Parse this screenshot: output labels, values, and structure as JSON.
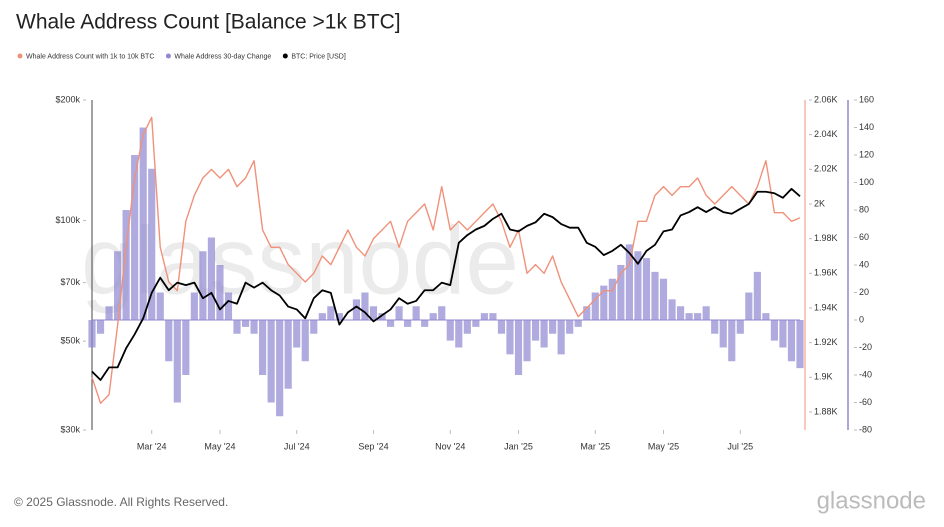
{
  "chart_data": {
    "type": "line",
    "title": "Whale Address Count [Balance >1k BTC]",
    "watermark": "glassnode",
    "footer": "© 2025 Glassnode. All Rights Reserved.",
    "logo": "glassnode",
    "categories": [
      null,
      null,
      null,
      null,
      null,
      null,
      null,
      "Mar '24",
      null,
      null,
      null,
      null,
      null,
      null,
      null,
      "May '24",
      null,
      null,
      null,
      null,
      null,
      null,
      null,
      null,
      "Jul '24",
      null,
      null,
      null,
      null,
      null,
      null,
      null,
      null,
      "Sep '24",
      null,
      null,
      null,
      null,
      null,
      null,
      null,
      null,
      "Nov '24",
      null,
      null,
      null,
      null,
      null,
      null,
      null,
      "Jan '25",
      null,
      null,
      null,
      null,
      null,
      null,
      null,
      null,
      "Mar '25",
      null,
      null,
      null,
      null,
      null,
      null,
      null,
      "May '25",
      null,
      null,
      null,
      null,
      null,
      null,
      null,
      null,
      "Jul '25",
      null,
      null,
      null,
      null,
      null,
      null,
      null
    ],
    "ylim": [
      30000,
      200000
    ],
    "log_scale": true,
    "yticks": [
      {
        "value": 30000,
        "label": "$30k"
      },
      {
        "value": 50000,
        "label": "$50k"
      },
      {
        "value": 70000,
        "label": "$70k"
      },
      {
        "value": 100000,
        "label": "$100k"
      },
      {
        "value": 200000,
        "label": "$200k"
      }
    ],
    "y2lim": [
      1869.6,
      2060
    ],
    "y2ticks": [
      {
        "value": 1880,
        "label": "1.88K"
      },
      {
        "value": 1900,
        "label": "1.9K"
      },
      {
        "value": 1920,
        "label": "1.92K"
      },
      {
        "value": 1940,
        "label": "1.94K"
      },
      {
        "value": 1960,
        "label": "1.96K"
      },
      {
        "value": 1980,
        "label": "1.98K"
      },
      {
        "value": 2000,
        "label": "2K"
      },
      {
        "value": 2020,
        "label": "2.02K"
      },
      {
        "value": 2040,
        "label": "2.04K"
      },
      {
        "value": 2060,
        "label": "2.06K"
      }
    ],
    "y3lim": [
      -80,
      160
    ],
    "y3ticks": [
      -80,
      -60,
      -40,
      -20,
      0,
      20,
      40,
      60,
      80,
      100,
      120,
      140,
      160
    ],
    "series": [
      {
        "name": "Whale Address Count with 1k to 10k BTC",
        "type": "line",
        "axis": "y2",
        "color": "#f0917a",
        "values": [
          1900,
          1885,
          1890,
          1930,
          1975,
          2015,
          2040,
          2050,
          1975,
          1955,
          1950,
          1990,
          2005,
          2015,
          2020,
          2015,
          2020,
          2010,
          2015,
          2025,
          1985,
          1975,
          1975,
          1965,
          1960,
          1955,
          1960,
          1970,
          1965,
          1975,
          1985,
          1975,
          1970,
          1980,
          1985,
          1990,
          1975,
          1990,
          1995,
          2000,
          1985,
          2010,
          1985,
          1990,
          1985,
          1990,
          1995,
          2000,
          1990,
          1975,
          1985,
          1960,
          1965,
          1960,
          1970,
          1955,
          1945,
          1935,
          1940,
          1945,
          1950,
          1950,
          1960,
          1965,
          1990,
          1990,
          2005,
          2010,
          2005,
          2010,
          2010,
          2015,
          2005,
          2000,
          2005,
          2010,
          2005,
          2000,
          2010,
          2025,
          1995,
          1995,
          1990,
          1992
        ]
      },
      {
        "name": "Whale Address 30-day Change",
        "type": "bar",
        "axis": "y3",
        "color": "#8f87d0",
        "values": [
          -20,
          -10,
          10,
          50,
          80,
          120,
          140,
          110,
          20,
          -30,
          -60,
          -40,
          20,
          50,
          60,
          40,
          20,
          -10,
          -5,
          -10,
          -40,
          -60,
          -70,
          -50,
          -20,
          -30,
          -10,
          5,
          10,
          5,
          0,
          15,
          20,
          10,
          5,
          -5,
          10,
          -5,
          10,
          -5,
          5,
          10,
          -15,
          -20,
          -10,
          -5,
          5,
          5,
          -10,
          -25,
          -40,
          -30,
          -15,
          -20,
          -10,
          -25,
          -10,
          -5,
          10,
          20,
          25,
          30,
          40,
          55,
          50,
          45,
          35,
          30,
          15,
          10,
          5,
          5,
          10,
          -10,
          -20,
          -30,
          -10,
          20,
          35,
          5,
          -15,
          -20,
          -30,
          -35
        ]
      },
      {
        "name": "BTC: Price [USD]",
        "type": "line",
        "axis": "y",
        "color": "#000000",
        "values": [
          42000,
          40000,
          43000,
          43000,
          48000,
          52000,
          57000,
          66000,
          72000,
          67000,
          70000,
          69000,
          70000,
          64000,
          66000,
          60000,
          63000,
          62000,
          70000,
          68000,
          70000,
          67000,
          65000,
          61000,
          60000,
          57000,
          64000,
          67000,
          66000,
          55000,
          59000,
          61000,
          59000,
          56000,
          58000,
          60000,
          64000,
          62000,
          63000,
          67000,
          67000,
          70000,
          69000,
          88000,
          92000,
          95000,
          97000,
          101000,
          104000,
          95000,
          94000,
          97000,
          99000,
          104000,
          102000,
          98000,
          96000,
          96000,
          88000,
          86000,
          82000,
          84000,
          87000,
          83000,
          78000,
          84000,
          87000,
          94000,
          95000,
          103000,
          105000,
          108000,
          105000,
          108000,
          105000,
          104000,
          107000,
          110000,
          118000,
          118000,
          117000,
          114000,
          120000,
          115000
        ]
      }
    ]
  }
}
